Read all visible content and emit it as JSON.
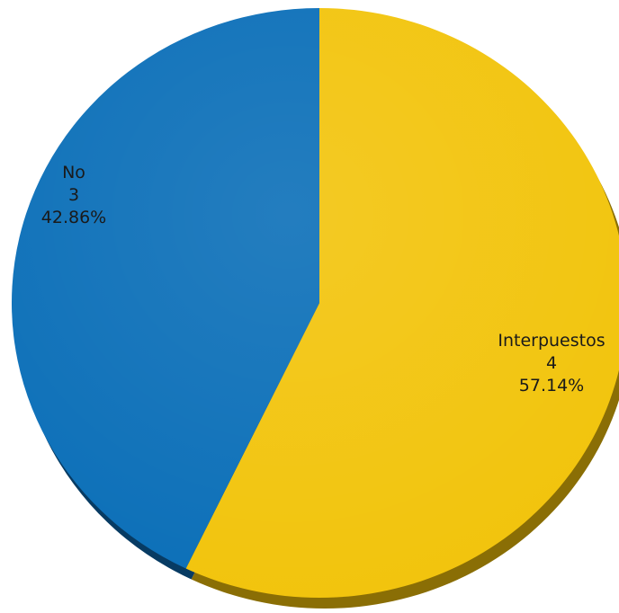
{
  "chart_data": {
    "type": "pie",
    "slices": [
      {
        "label": "Interpuestos",
        "value": 4,
        "percent": "57.14%",
        "color": "#f2c40c",
        "shadow_color": "#8a6e05"
      },
      {
        "label": "No",
        "value": 3,
        "percent": "42.86%",
        "color": "#0b6fb8",
        "shadow_color": "#073b63"
      }
    ],
    "title": "",
    "legend": false,
    "start": "top, clockwise"
  }
}
